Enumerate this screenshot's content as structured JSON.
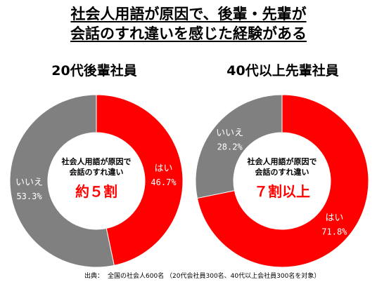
{
  "title": {
    "line1": "社会人用語が原因で、後輩・先輩が",
    "line2": "会話のすれ違いを感じた経験がある"
  },
  "source": {
    "label": "出典：",
    "text": "全国の社会人600名 （20代会社員300名、40代以上会社員300名を対象）"
  },
  "colors": {
    "yes": "#ff0000",
    "no": "#808080",
    "yes_text": "#ffffff",
    "no_text": "#ffffff",
    "highlight": "#ff0000"
  },
  "chart_data": [
    {
      "type": "pie",
      "title": "20代後輩社員",
      "categories": [
        "はい",
        "いいえ"
      ],
      "values": [
        46.7,
        53.3
      ],
      "value_labels": [
        "46.7%",
        "53.3%"
      ],
      "center_text": {
        "line1": "社会人用語が原因で",
        "line2": "会話のすれ違い",
        "highlight": "約５割"
      }
    },
    {
      "type": "pie",
      "title": "40代以上先輩社員",
      "categories": [
        "はい",
        "いいえ"
      ],
      "values": [
        71.8,
        28.2
      ],
      "value_labels": [
        "71.8%",
        "28.2%"
      ],
      "center_text": {
        "line1": "社会人用語が原因で",
        "line2": "会話のすれ違い",
        "highlight": "７割以上"
      }
    }
  ]
}
